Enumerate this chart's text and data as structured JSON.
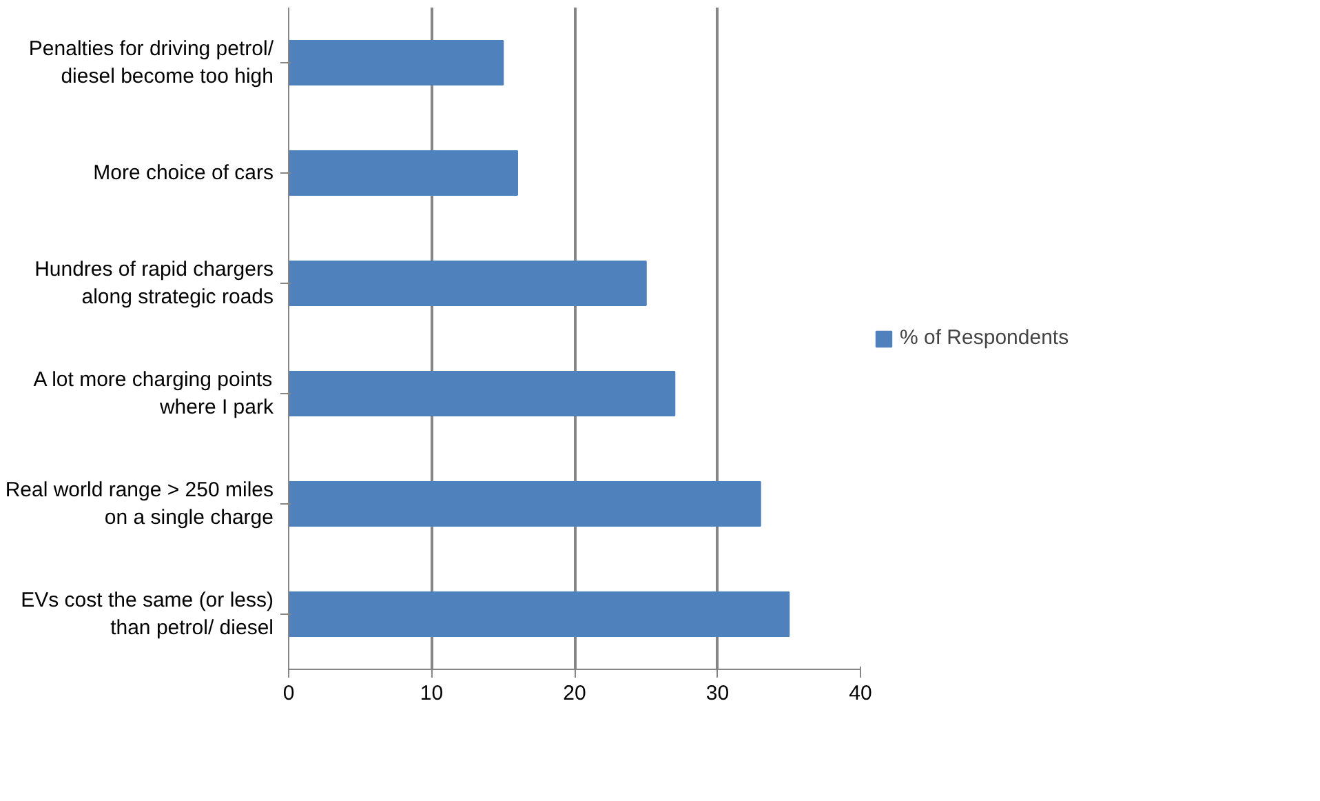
{
  "chart_data": {
    "type": "bar",
    "orientation": "horizontal",
    "categories": [
      "Penalties for driving petrol/\ndiesel become too high",
      "More choice of cars",
      "Hundres of rapid chargers\nalong strategic roads",
      "A lot more charging points\nwhere I park",
      "Real world range > 250 miles\non a single charge",
      "EVs cost the same (or less)\nthan petrol/ diesel"
    ],
    "series": [
      {
        "name": "% of Respondents",
        "color": "#4f81bd",
        "values": [
          15,
          16,
          25,
          27,
          33,
          35
        ]
      }
    ],
    "xlim": [
      0,
      40
    ],
    "xticks": [
      0,
      10,
      20,
      30,
      40
    ],
    "grid": "x",
    "legend": "right"
  }
}
